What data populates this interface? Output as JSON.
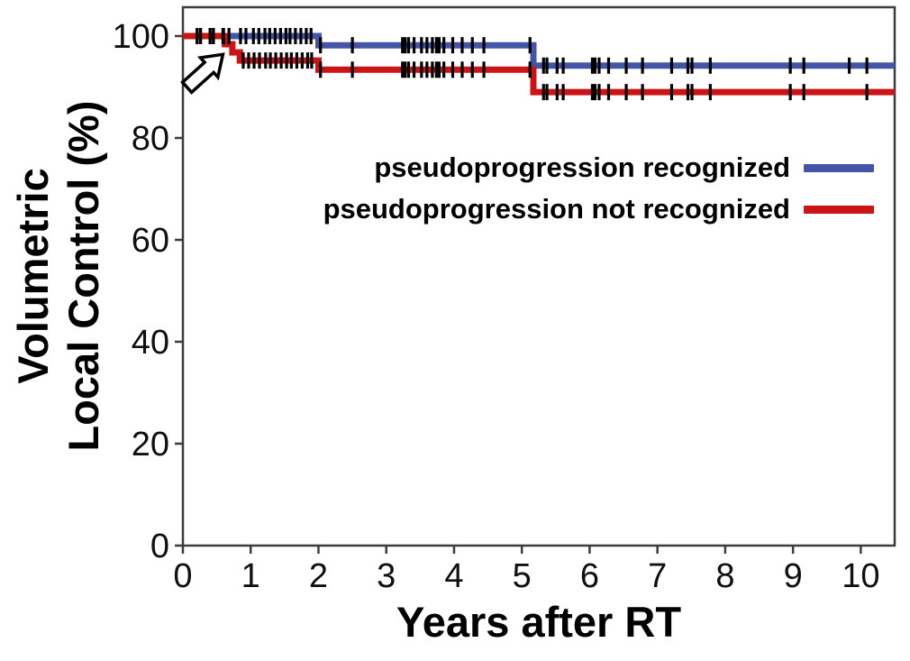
{
  "chart_data": {
    "type": "line",
    "subtype": "kaplan-meier-step",
    "title": "",
    "xlabel": "Years after RT",
    "ylabel_lines": [
      "Volumetric",
      "Local Control (%)"
    ],
    "xlim": [
      0,
      10.5
    ],
    "ylim": [
      0,
      106
    ],
    "xticks": [
      0,
      1,
      2,
      3,
      4,
      5,
      6,
      7,
      8,
      9,
      10
    ],
    "yticks": [
      0,
      20,
      40,
      60,
      80,
      100
    ],
    "grid": false,
    "legend_position": "inside upper right",
    "axis_color": "#3c3c3c",
    "tick_label_color": "#101010",
    "series": [
      {
        "name": "pseudoprogression recognized",
        "color": "#4455a7",
        "steps": [
          [
            0,
            100
          ],
          [
            2.0,
            100
          ],
          [
            2.0,
            98.2
          ],
          [
            5.17,
            98.2
          ],
          [
            5.17,
            94.2
          ],
          [
            10.5,
            94.2
          ]
        ],
        "censor_times": [
          0.21,
          0.26,
          0.4,
          0.45,
          0.6,
          0.68,
          0.85,
          0.93,
          1.04,
          1.12,
          1.21,
          1.28,
          1.36,
          1.44,
          1.52,
          1.58,
          1.66,
          1.74,
          1.82,
          1.89,
          2.03,
          2.5,
          3.24,
          3.28,
          3.33,
          3.41,
          3.52,
          3.6,
          3.68,
          3.74,
          3.78,
          3.85,
          3.98,
          4.12,
          4.27,
          4.44,
          5.12,
          5.32,
          5.37,
          5.52,
          5.61,
          6.04,
          6.08,
          6.14,
          6.28,
          6.54,
          6.78,
          7.21,
          7.45,
          7.51,
          7.78,
          8.96,
          9.16,
          9.83,
          10.09
        ]
      },
      {
        "name": "pseudoprogression not recognized",
        "color": "#cb1416",
        "steps": [
          [
            0,
            100
          ],
          [
            0.62,
            100
          ],
          [
            0.62,
            98.4
          ],
          [
            0.73,
            98.4
          ],
          [
            0.73,
            96.8
          ],
          [
            0.84,
            96.8
          ],
          [
            0.84,
            95.2
          ],
          [
            2.0,
            95.2
          ],
          [
            2.0,
            93.4
          ],
          [
            5.17,
            93.4
          ],
          [
            5.17,
            89.0
          ],
          [
            10.5,
            89.0
          ]
        ],
        "censor_times": [
          0.21,
          0.26,
          0.4,
          0.45,
          0.59,
          0.89,
          0.97,
          1.05,
          1.13,
          1.22,
          1.29,
          1.37,
          1.45,
          1.53,
          1.6,
          1.68,
          1.76,
          1.84,
          1.9,
          2.03,
          2.5,
          3.24,
          3.28,
          3.33,
          3.41,
          3.52,
          3.6,
          3.68,
          3.74,
          3.78,
          3.85,
          3.98,
          4.12,
          4.27,
          4.44,
          5.12,
          5.32,
          5.37,
          5.52,
          5.61,
          6.04,
          6.08,
          6.14,
          6.28,
          6.54,
          6.78,
          7.21,
          7.45,
          7.51,
          7.78,
          8.96,
          9.16,
          10.09
        ]
      }
    ],
    "annotation_arrow": {
      "shape": "open-arrow-outline",
      "tip_x_year": 0.59,
      "tip_y_pct": 96.4,
      "angle_deg": -42,
      "fill": "#ffffff",
      "stroke": "#000000"
    }
  }
}
